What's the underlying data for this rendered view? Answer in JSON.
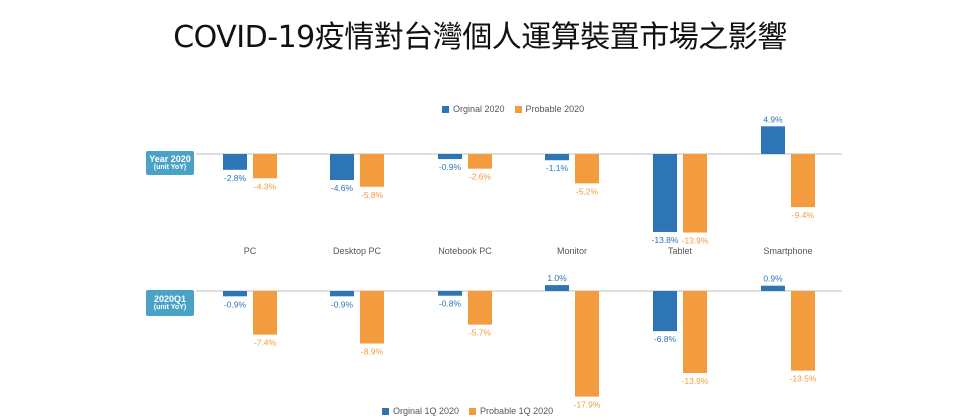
{
  "title": "COVID-19疫情對台灣個人運算裝置市場之影響",
  "colors": {
    "original": "#2e75b6",
    "probable": "#f39c3f",
    "axis": "#bfbfbf"
  },
  "chart_data": [
    {
      "type": "bar",
      "panel_label": [
        "Year 2020",
        "(unit YoY)"
      ],
      "categories": [
        "PC",
        "Desktop PC",
        "Notebook PC",
        "Monitor",
        "Tablet",
        "Smartphone"
      ],
      "series": [
        {
          "name": "Orginal 2020",
          "values": [
            -2.8,
            -4.6,
            -0.9,
            -1.1,
            -13.8,
            4.9
          ],
          "labels": [
            "-2.8%",
            "-4.6%",
            "-0.9%",
            "-1.1%",
            "-13.8%",
            "4.9%"
          ]
        },
        {
          "name": "Probable 2020",
          "values": [
            -4.3,
            -5.8,
            -2.6,
            -5.2,
            -13.9,
            -9.4
          ],
          "labels": [
            "-4.3%",
            "-5.8%",
            "-2.6%",
            "-5.2%",
            "-13.9%",
            "-9.4%"
          ]
        }
      ],
      "legend": "top"
    },
    {
      "type": "bar",
      "panel_label": [
        "2020Q1",
        "(unit YoY)"
      ],
      "categories": [
        "PC",
        "Desktop PC",
        "Notebook PC",
        "Monitor",
        "Tablet",
        "Smartphone"
      ],
      "series": [
        {
          "name": "Orginal 1Q 2020",
          "values": [
            -0.9,
            -0.9,
            -0.8,
            1.0,
            -6.8,
            0.9
          ],
          "labels": [
            "-0.9%",
            "-0.9%",
            "-0.8%",
            "1.0%",
            "-6.8%",
            "0.9%"
          ]
        },
        {
          "name": "Probable 1Q 2020",
          "values": [
            -7.4,
            -8.9,
            -5.7,
            -17.9,
            -13.9,
            -13.5
          ],
          "labels": [
            "-7.4%",
            "-8.9%",
            "-5.7%",
            "-17.9%",
            "-13.9%",
            "-13.5%"
          ]
        }
      ],
      "legend": "bottom"
    }
  ]
}
